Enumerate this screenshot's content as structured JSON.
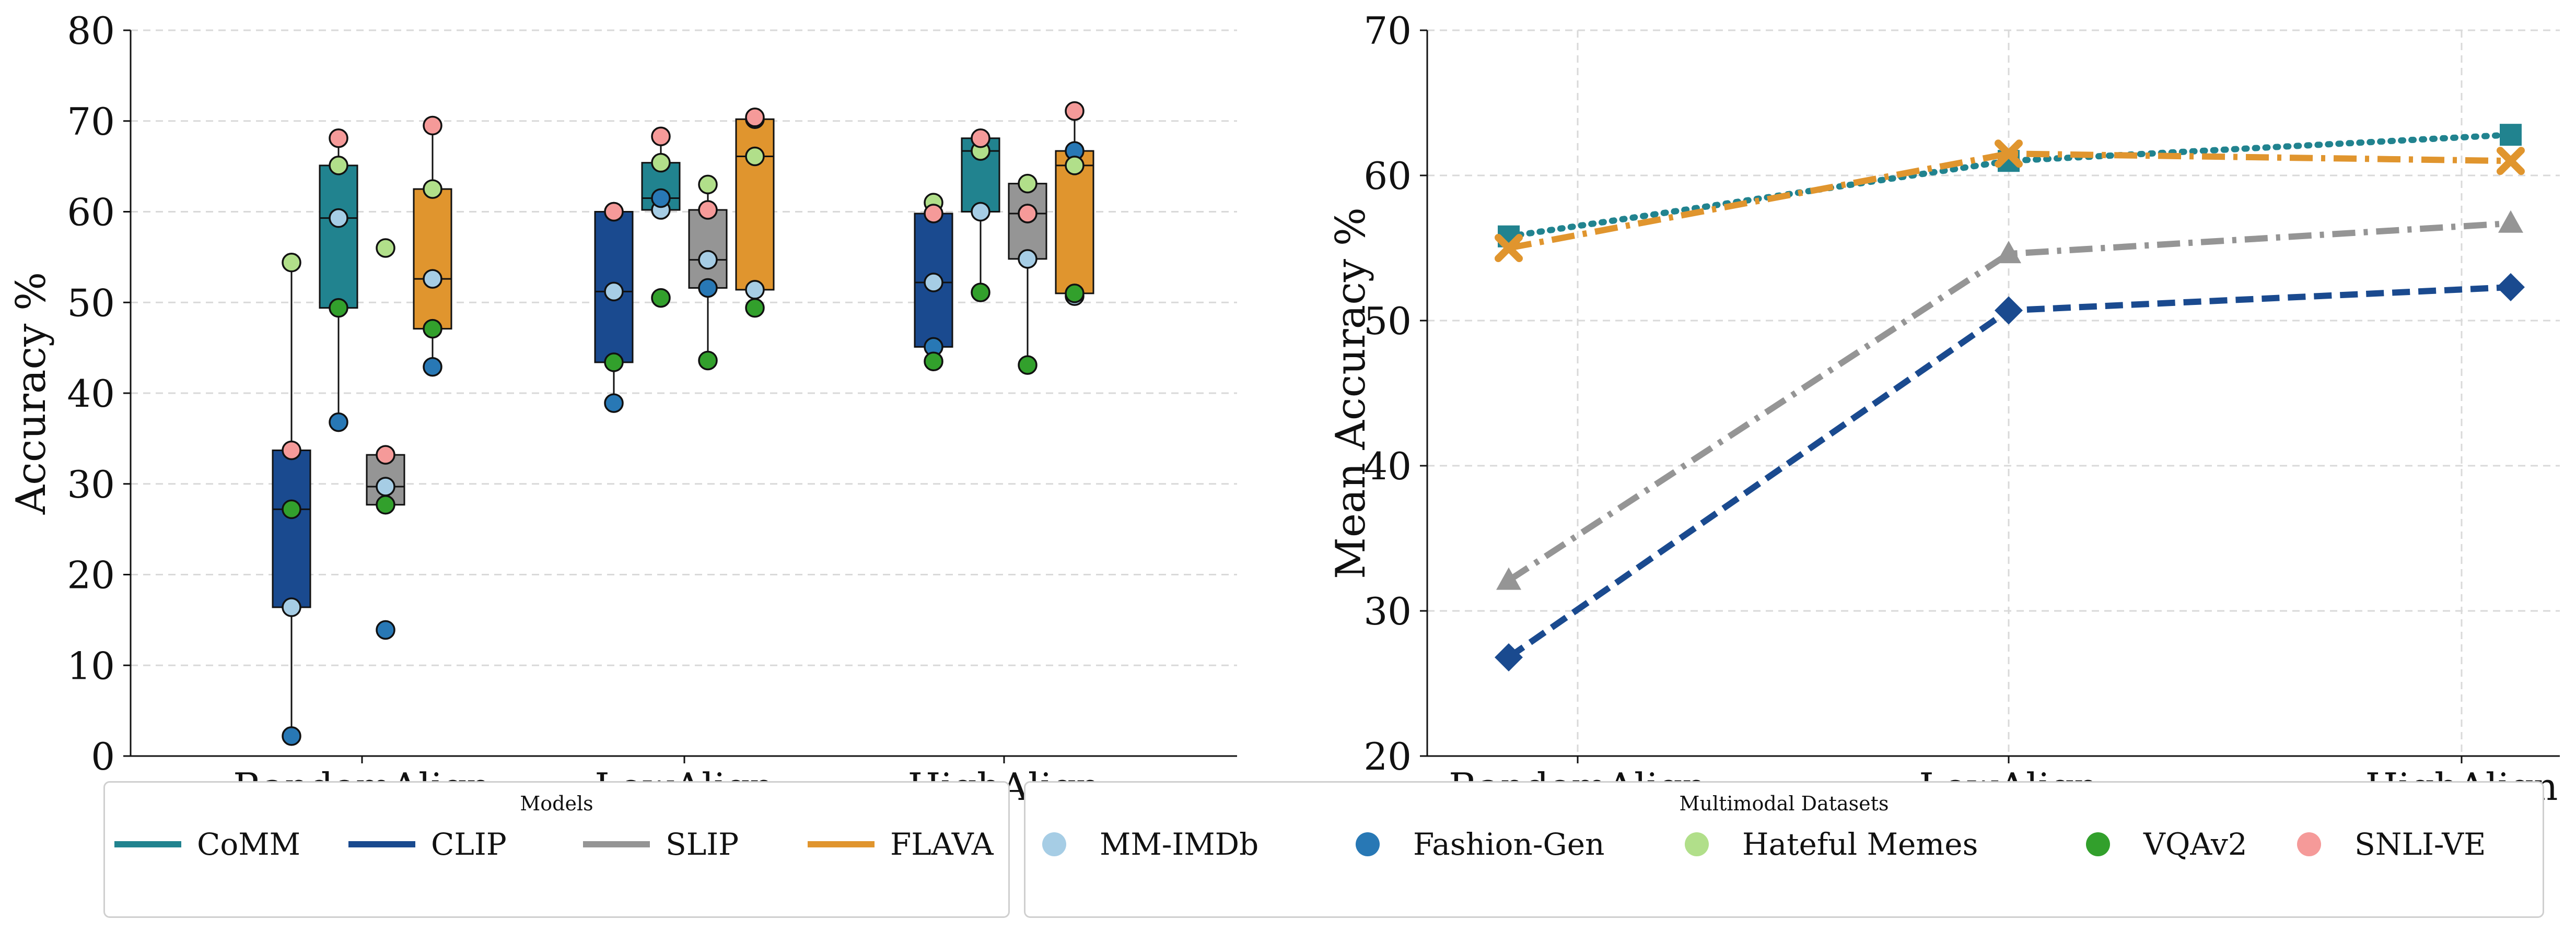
{
  "colors": {
    "CoMM": "#21838f",
    "CLIP": "#1a4a8f",
    "SLIP": "#959595",
    "FLAVA": "#e0952e",
    "MM-IMDb": "#a6cde5",
    "Fashion-Gen": "#2878b5",
    "Hateful Memes": "#b1df8a",
    "VQAv2": "#32a02c",
    "SNLI-VE": "#f59a99"
  },
  "chart_data": [
    {
      "type": "box",
      "ylabel": "Accuracy %",
      "ylim": [
        0,
        80
      ],
      "yticks": [
        0,
        10,
        20,
        30,
        40,
        50,
        60,
        70,
        80
      ],
      "grid": "horizontal-dashed",
      "categories": [
        "RandomAlign",
        "LowAlign",
        "HighAlign"
      ],
      "models": [
        "CLIP",
        "CoMM",
        "SLIP",
        "FLAVA"
      ],
      "datasets": [
        "MM-IMDb",
        "Fashion-Gen",
        "Hateful Memes",
        "VQAv2",
        "SNLI-VE"
      ],
      "boxes": [
        {
          "category": "RandomAlign",
          "model": "CLIP",
          "q1": 16.4,
          "median": 27.2,
          "q3": 33.7,
          "whislo": 2.2,
          "whishi": 54.4,
          "points": {
            "MM-IMDb": 16.4,
            "Fashion-Gen": 2.2,
            "Hateful Memes": 54.4,
            "VQAv2": 27.2,
            "SNLI-VE": 33.7
          }
        },
        {
          "category": "RandomAlign",
          "model": "CoMM",
          "q1": 49.4,
          "median": 59.3,
          "q3": 65.1,
          "whislo": 36.8,
          "whishi": 68.1,
          "points": {
            "MM-IMDb": 59.3,
            "Fashion-Gen": 36.8,
            "Hateful Memes": 65.1,
            "VQAv2": 49.4,
            "SNLI-VE": 68.1
          }
        },
        {
          "category": "RandomAlign",
          "model": "SLIP",
          "q1": 27.7,
          "median": 29.7,
          "q3": 33.2,
          "whislo": 27.7,
          "whishi": 33.2,
          "points": {
            "MM-IMDb": 29.7,
            "Fashion-Gen": 13.9,
            "Hateful Memes": 56.0,
            "VQAv2": 27.7,
            "SNLI-VE": 33.2
          }
        },
        {
          "category": "RandomAlign",
          "model": "FLAVA",
          "q1": 47.1,
          "median": 52.6,
          "q3": 62.5,
          "whislo": 42.9,
          "whishi": 69.5,
          "points": {
            "MM-IMDb": 52.6,
            "Fashion-Gen": 42.9,
            "Hateful Memes": 62.5,
            "VQAv2": 47.1,
            "SNLI-VE": 69.5
          }
        },
        {
          "category": "LowAlign",
          "model": "CLIP",
          "q1": 43.4,
          "median": 51.2,
          "q3": 60.0,
          "whislo": 38.9,
          "whishi": 60.0,
          "points": {
            "MM-IMDb": 51.2,
            "Fashion-Gen": 38.9,
            "Hateful Memes": 60.0,
            "VQAv2": 43.4,
            "SNLI-VE": 60.0
          }
        },
        {
          "category": "LowAlign",
          "model": "CoMM",
          "q1": 60.2,
          "median": 61.5,
          "q3": 65.4,
          "whislo": 60.2,
          "whishi": 68.3,
          "points": {
            "MM-IMDb": 60.2,
            "Fashion-Gen": 61.5,
            "Hateful Memes": 65.4,
            "VQAv2": 50.5,
            "SNLI-VE": 68.3
          }
        },
        {
          "category": "LowAlign",
          "model": "SLIP",
          "q1": 51.6,
          "median": 54.7,
          "q3": 60.2,
          "whislo": 43.6,
          "whishi": 63.0,
          "points": {
            "MM-IMDb": 54.7,
            "Fashion-Gen": 51.6,
            "Hateful Memes": 63.0,
            "VQAv2": 43.6,
            "SNLI-VE": 60.2
          }
        },
        {
          "category": "LowAlign",
          "model": "FLAVA",
          "q1": 51.4,
          "median": 66.1,
          "q3": 70.2,
          "whislo": 49.4,
          "whishi": 70.4,
          "points": {
            "MM-IMDb": 51.4,
            "Fashion-Gen": 70.2,
            "Hateful Memes": 66.1,
            "VQAv2": 49.4,
            "SNLI-VE": 70.4
          }
        },
        {
          "category": "HighAlign",
          "model": "CLIP",
          "q1": 45.1,
          "median": 52.2,
          "q3": 59.8,
          "whislo": 43.5,
          "whishi": 61.0,
          "points": {
            "MM-IMDb": 52.2,
            "Fashion-Gen": 45.1,
            "Hateful Memes": 61.0,
            "VQAv2": 43.5,
            "SNLI-VE": 59.8
          }
        },
        {
          "category": "HighAlign",
          "model": "CoMM",
          "q1": 60.0,
          "median": 66.7,
          "q3": 68.1,
          "whislo": 51.1,
          "whishi": 68.1,
          "points": {
            "MM-IMDb": 60.0,
            "Fashion-Gen": 66.7,
            "Hateful Memes": 66.7,
            "VQAv2": 51.1,
            "SNLI-VE": 68.1
          }
        },
        {
          "category": "HighAlign",
          "model": "SLIP",
          "q1": 54.8,
          "median": 59.8,
          "q3": 63.1,
          "whislo": 43.1,
          "whishi": 63.1,
          "points": {
            "MM-IMDb": 54.8,
            "Fashion-Gen": 59.8,
            "Hateful Memes": 63.1,
            "VQAv2": 43.1,
            "SNLI-VE": 59.8
          }
        },
        {
          "category": "HighAlign",
          "model": "FLAVA",
          "q1": 51.0,
          "median": 65.1,
          "q3": 66.7,
          "whislo": 50.7,
          "whishi": 71.1,
          "points": {
            "MM-IMDb": 50.7,
            "Fashion-Gen": 66.7,
            "Hateful Memes": 65.1,
            "VQAv2": 51.0,
            "SNLI-VE": 71.1
          }
        }
      ]
    },
    {
      "type": "line",
      "ylabel": "Mean Accuracy %",
      "ylim": [
        20,
        70
      ],
      "yticks": [
        20,
        30,
        40,
        50,
        60,
        70
      ],
      "grid": "both-dashed",
      "categories": [
        "RandomAlign",
        "LowAlign",
        "HighAlign"
      ],
      "series": [
        {
          "name": "CoMM",
          "values": [
            55.8,
            61.0,
            62.8
          ],
          "linestyle": "dotted",
          "marker": "square"
        },
        {
          "name": "FLAVA",
          "values": [
            55.0,
            61.5,
            61.0
          ],
          "linestyle": "dashdot",
          "marker": "x"
        },
        {
          "name": "SLIP",
          "values": [
            32.1,
            54.6,
            56.7
          ],
          "linestyle": "dashdot",
          "marker": "triangle"
        },
        {
          "name": "CLIP",
          "values": [
            26.8,
            50.7,
            52.3
          ],
          "linestyle": "dashed",
          "marker": "diamond"
        }
      ]
    }
  ],
  "legends": {
    "models": {
      "title": "Models",
      "items": [
        "CoMM",
        "CLIP",
        "SLIP",
        "FLAVA"
      ]
    },
    "datasets": {
      "title": "Multimodal Datasets",
      "items": [
        "MM-IMDb",
        "Fashion-Gen",
        "Hateful Memes",
        "VQAv2",
        "SNLI-VE"
      ]
    }
  }
}
